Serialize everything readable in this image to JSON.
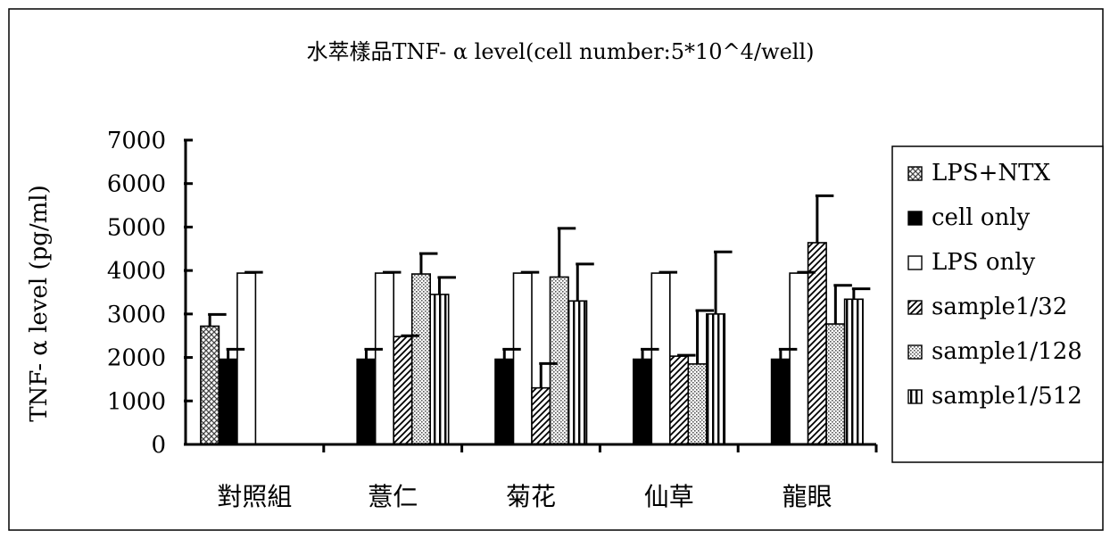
{
  "chart_data": {
    "type": "bar",
    "title": "水萃樣品TNF- α level(cell number:5*10^4/well)",
    "xlabel": "",
    "ylabel": "TNF- α  level (pg/ml)",
    "ylim": [
      0,
      7000
    ],
    "yticks": [
      "0",
      "1000",
      "2000",
      "3000",
      "4000",
      "5000",
      "6000",
      "7000"
    ],
    "grid": false,
    "legend_position": "right",
    "categories": [
      "對照組",
      "薏仁",
      "菊花",
      "仙草",
      "龍眼"
    ],
    "series": [
      {
        "name": "LPS+NTX",
        "pattern": "crosshatch",
        "color": "#555555",
        "values": [
          2720,
          null,
          null,
          null,
          null
        ],
        "errors": [
          270,
          null,
          null,
          null,
          null
        ]
      },
      {
        "name": "cell only",
        "pattern": "solid",
        "color": "#000000",
        "values": [
          1960,
          1960,
          1960,
          1960,
          1960
        ],
        "errors": [
          230,
          230,
          230,
          230,
          230
        ]
      },
      {
        "name": "LPS only",
        "pattern": "empty",
        "color": "#ffffff",
        "values": [
          3940,
          3940,
          3940,
          3940,
          3940
        ],
        "errors": [
          20,
          20,
          20,
          20,
          20
        ]
      },
      {
        "name": "sample1/32",
        "pattern": "diagonal",
        "color": "#000000",
        "values": [
          null,
          2480,
          1300,
          2030,
          4640
        ],
        "errors": [
          null,
          20,
          560,
          20,
          1080
        ]
      },
      {
        "name": "sample1/128",
        "pattern": "dots",
        "color": "#666666",
        "values": [
          null,
          3920,
          3850,
          1850,
          2770
        ],
        "errors": [
          null,
          470,
          1120,
          1230,
          890
        ]
      },
      {
        "name": "sample1/512",
        "pattern": "vertical",
        "color": "#000000",
        "values": [
          null,
          3450,
          3300,
          3000,
          3340
        ],
        "errors": [
          null,
          390,
          850,
          1430,
          240
        ]
      }
    ]
  },
  "colors": {
    "axis": "#000000",
    "frame": "#000000",
    "background": "#ffffff"
  }
}
